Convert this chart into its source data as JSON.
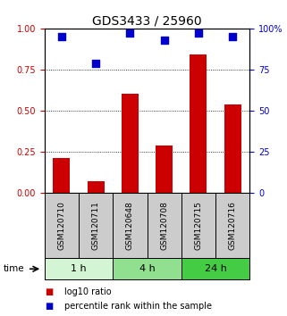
{
  "title": "GDS3433 / 25960",
  "samples": [
    "GSM120710",
    "GSM120711",
    "GSM120648",
    "GSM120708",
    "GSM120715",
    "GSM120716"
  ],
  "log10_ratio": [
    0.21,
    0.07,
    0.6,
    0.29,
    0.84,
    0.54
  ],
  "percentile_rank": [
    0.95,
    0.79,
    0.97,
    0.93,
    0.97,
    0.95
  ],
  "time_groups": [
    {
      "label": "1 h",
      "indices": [
        0,
        1
      ],
      "color": "#d4f5d4"
    },
    {
      "label": "4 h",
      "indices": [
        2,
        3
      ],
      "color": "#90e090"
    },
    {
      "label": "24 h",
      "indices": [
        4,
        5
      ],
      "color": "#44cc44"
    }
  ],
  "bar_color": "#cc0000",
  "dot_color": "#0000cc",
  "left_axis_color": "#cc0000",
  "right_axis_color": "#0000cc",
  "ylim_left": [
    0,
    1.0
  ],
  "ylim_right": [
    0,
    100
  ],
  "yticks_left": [
    0,
    0.25,
    0.5,
    0.75,
    1.0
  ],
  "yticks_right": [
    0,
    25,
    50,
    75,
    100
  ],
  "grid_yticks": [
    0.25,
    0.5,
    0.75
  ],
  "bar_width": 0.5,
  "dot_size": 40,
  "legend_items": [
    {
      "color": "#cc0000",
      "label": "log10 ratio"
    },
    {
      "color": "#0000cc",
      "label": "percentile rank within the sample"
    }
  ],
  "time_label": "time",
  "sample_box_color": "#cccccc",
  "title_fontsize": 10,
  "tick_fontsize": 7,
  "label_fontsize": 7,
  "legend_fontsize": 7,
  "sample_fontsize": 6.5
}
